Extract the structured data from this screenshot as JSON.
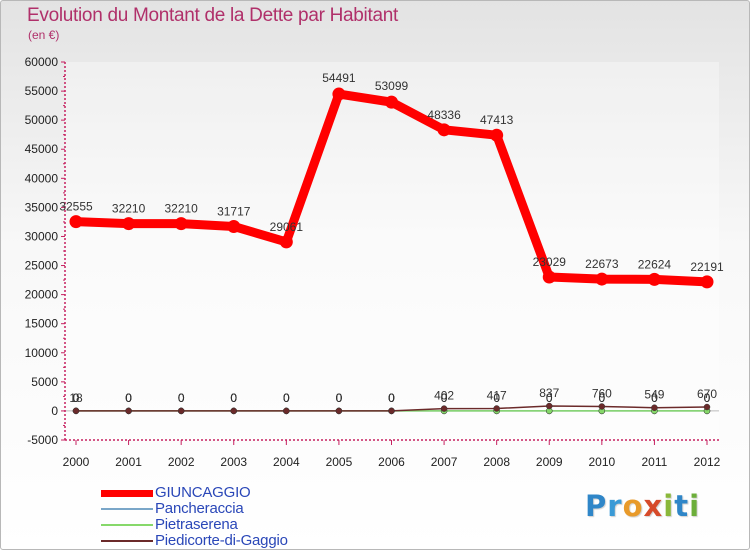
{
  "title": "Evolution du Montant de la Dette par Habitant",
  "subtitle": "(en €)",
  "logo": [
    "P",
    "r",
    "o",
    "x",
    "i",
    "t",
    "i"
  ],
  "chart_data": {
    "type": "line",
    "title": "Evolution du Montant de la Dette par Habitant",
    "ylabel": "(en €)",
    "xlabel": "",
    "ylim": [
      -5000,
      60000
    ],
    "yticks": [
      -5000,
      0,
      5000,
      10000,
      15000,
      20000,
      25000,
      30000,
      35000,
      40000,
      45000,
      50000,
      55000,
      60000
    ],
    "x": [
      "2000",
      "2001",
      "2002",
      "2003",
      "2004",
      "2005",
      "2006",
      "2007",
      "2008",
      "2009",
      "2010",
      "2011",
      "2012"
    ],
    "legend_position": "bottom-left",
    "series": [
      {
        "name": "GIUNCAGGIO",
        "color": "#ff0000",
        "values": [
          32555,
          32210,
          32210,
          31717,
          29061,
          54491,
          53099,
          48336,
          47413,
          23029,
          22673,
          22624,
          22191
        ],
        "labels": [
          "32555",
          "32210",
          "32210",
          "31717",
          "29061",
          "54491",
          "53099",
          "48336",
          "47413",
          "23029",
          "22673",
          "22624",
          "22191"
        ]
      },
      {
        "name": "Pancheraccia",
        "color": "#7aa6c8",
        "values": [
          0,
          0,
          0,
          0,
          0,
          0,
          0,
          0,
          0,
          0,
          0,
          0,
          0
        ],
        "labels": [
          "0",
          "0",
          "0",
          "0",
          "0",
          "0",
          "0",
          "0",
          "0",
          "0",
          "0",
          "0",
          "0"
        ]
      },
      {
        "name": "Pietraserena",
        "color": "#86d86a",
        "values": [
          0,
          0,
          0,
          0,
          0,
          0,
          0,
          0,
          0,
          0,
          0,
          0,
          0
        ],
        "labels": [
          "0",
          "0",
          "0",
          "0",
          "0",
          "0",
          "0",
          "0",
          "0",
          "0",
          "0",
          "0",
          "0"
        ]
      },
      {
        "name": "Piedicorte-di-Gaggio",
        "color": "#6b2a2a",
        "values": [
          18,
          0,
          0,
          0,
          0,
          0,
          0,
          402,
          417,
          837,
          760,
          549,
          670
        ],
        "labels": [
          "18",
          "0",
          "0",
          "0",
          "0",
          "0",
          "0",
          "402",
          "417",
          "837",
          "760",
          "549",
          "670"
        ]
      }
    ]
  }
}
